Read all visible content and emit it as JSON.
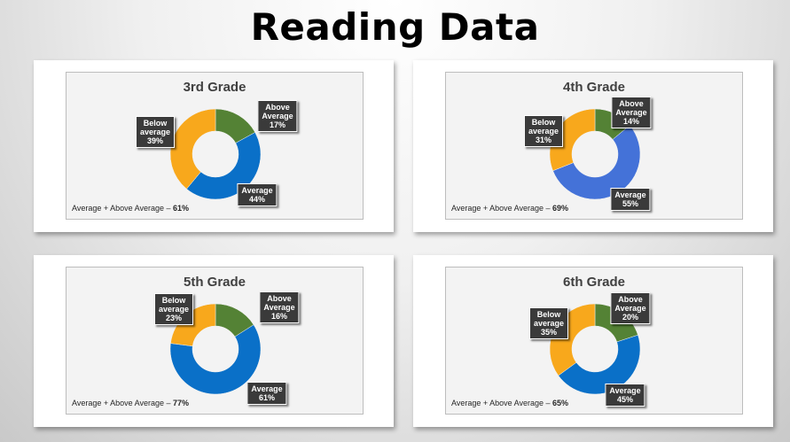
{
  "page": {
    "title": "Reading Data"
  },
  "colors": {
    "above": "#548235",
    "average": "#0a70c8",
    "average_4th": "#4472d8",
    "below": "#f8a81c"
  },
  "chart_data": [
    {
      "type": "pie",
      "title": "3rd Grade",
      "slices": [
        {
          "key": "above",
          "label": [
            "Above",
            "Average"
          ],
          "value": 17,
          "value_text": "17%"
        },
        {
          "key": "average",
          "label": [
            "Average"
          ],
          "value": 44,
          "value_text": "44%"
        },
        {
          "key": "below",
          "label": [
            "Below",
            "average"
          ],
          "value": 39,
          "value_text": "39%"
        }
      ],
      "summary_label": "Average + Above Average – ",
      "summary_value": "61%"
    },
    {
      "type": "pie",
      "title": "4th Grade",
      "slices": [
        {
          "key": "above",
          "label": [
            "Above",
            "Average"
          ],
          "value": 14,
          "value_text": "14%"
        },
        {
          "key": "average",
          "label": [
            "Average"
          ],
          "value": 55,
          "value_text": "55%"
        },
        {
          "key": "below",
          "label": [
            "Below",
            "average"
          ],
          "value": 31,
          "value_text": "31%"
        }
      ],
      "summary_label": "Average + Above Average – ",
      "summary_value": "69%"
    },
    {
      "type": "pie",
      "title": "5th Grade",
      "slices": [
        {
          "key": "above",
          "label": [
            "Above",
            "Average"
          ],
          "value": 16,
          "value_text": "16%"
        },
        {
          "key": "average",
          "label": [
            "Average"
          ],
          "value": 61,
          "value_text": "61%"
        },
        {
          "key": "below",
          "label": [
            "Below",
            "average"
          ],
          "value": 23,
          "value_text": "23%"
        }
      ],
      "summary_label": "Average + Above Average – ",
      "summary_value": "77%"
    },
    {
      "type": "pie",
      "title": "6th Grade",
      "slices": [
        {
          "key": "above",
          "label": [
            "Above",
            "Average"
          ],
          "value": 20,
          "value_text": "20%"
        },
        {
          "key": "average",
          "label": [
            "Average"
          ],
          "value": 45,
          "value_text": "45%"
        },
        {
          "key": "below",
          "label": [
            "Below",
            "average"
          ],
          "value": 35,
          "value_text": "35%"
        }
      ],
      "summary_label": "Average + Above Average – ",
      "summary_value": "65%"
    }
  ]
}
